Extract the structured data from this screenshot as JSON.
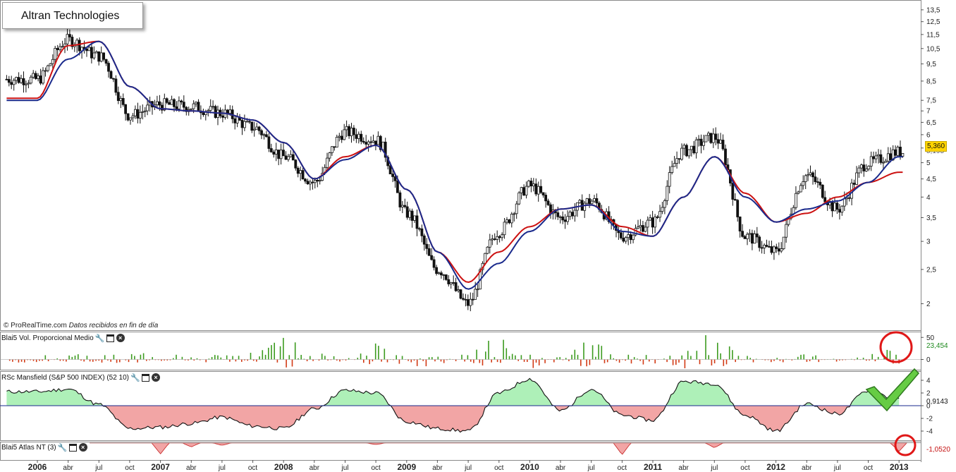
{
  "title": "Altran Technologies",
  "credit_site": "© ProRealTime.com",
  "credit_note": "Datos recibidos en fin de día",
  "colors": {
    "up_bar": "#3c9b1f",
    "down_bar": "#d23a15",
    "ma_fast": "#cc1111",
    "ma_slow": "#1a2a8c",
    "rs_positive_fill": "#aef0b8",
    "rs_negative_fill": "#f2a5a5",
    "price_tag": "#ffd400",
    "annotation_red": "#e01818",
    "check_green": "#66cc44"
  },
  "x_axis": {
    "labels": [
      "2006",
      "abr",
      "jul",
      "oct",
      "2007",
      "abr",
      "jul",
      "oct",
      "2008",
      "abr",
      "jul",
      "oct",
      "2009",
      "abr",
      "jul",
      "oct",
      "2010",
      "abr",
      "jul",
      "oct",
      "2011",
      "abr",
      "jul",
      "oct",
      "2012",
      "abr",
      "jul",
      "oct",
      "2013"
    ],
    "bold": [
      "2006",
      "2007",
      "2008",
      "2009",
      "2010",
      "2011",
      "2012",
      "2013"
    ]
  },
  "price_panel": {
    "icon": "gear-icon",
    "current_price_label": "5,360",
    "secondary_label": "5,195",
    "y_ticks": [
      "13,5",
      "12,5",
      "11,5",
      "10,5",
      "9,5",
      "8,5",
      "7,5",
      "7",
      "6,5",
      "6",
      "5,5",
      "5",
      "4,5",
      "4",
      "3,5",
      "3",
      "2,5",
      "2"
    ]
  },
  "volume_panel": {
    "name": "Blai5 Vol. Proporcional Medio",
    "value_label": "23,454",
    "y_ticks": [
      "50",
      "0"
    ]
  },
  "rs_panel": {
    "name": "RSc Mansfield (S&P 500 INDEX) (52 10)",
    "value_label": "0,9143",
    "y_ticks": [
      "4",
      "2",
      "0",
      "-2",
      "-4"
    ]
  },
  "atlas_panel": {
    "name": "Blai5 Atlas NT (3)",
    "value_label": "-1,0520"
  },
  "chart_data": [
    {
      "type": "candlestick",
      "title": "Altran Technologies",
      "yscale": "log",
      "ylim": [
        1.7,
        14
      ],
      "x": [
        "2006-01",
        "2006-04",
        "2006-07",
        "2006-10",
        "2007-01",
        "2007-04",
        "2007-07",
        "2007-10",
        "2008-01",
        "2008-04",
        "2008-07",
        "2008-10",
        "2009-01",
        "2009-04",
        "2009-07",
        "2009-10",
        "2010-01",
        "2010-04",
        "2010-07",
        "2010-10",
        "2011-01",
        "2011-04",
        "2011-07",
        "2011-10",
        "2012-01",
        "2012-04",
        "2012-07",
        "2012-10",
        "2013-01"
      ],
      "close": [
        8.6,
        11.1,
        10.0,
        6.8,
        7.3,
        7.2,
        6.9,
        6.3,
        5.2,
        4.4,
        6.1,
        5.8,
        3.6,
        2.5,
        2.0,
        3.2,
        4.3,
        3.5,
        3.9,
        3.1,
        3.4,
        5.4,
        5.9,
        3.1,
        2.8,
        4.6,
        3.7,
        5.0,
        5.36
      ],
      "series": [
        {
          "name": "",
          "color": "#cc1111",
          "values": [
            7.6,
            10.7,
            11.0,
            8.2,
            7.1,
            7.0,
            6.9,
            6.6,
            5.7,
            4.5,
            5.2,
            5.6,
            4.2,
            2.8,
            2.3,
            2.8,
            3.3,
            3.7,
            3.8,
            3.3,
            3.1,
            4.0,
            5.2,
            4.1,
            3.4,
            3.6,
            4.0,
            4.4,
            4.7
          ]
        },
        {
          "name": "",
          "color": "#1a2a8c",
          "values": [
            7.5,
            9.8,
            11.0,
            8.2,
            7.1,
            7.0,
            6.9,
            6.6,
            5.7,
            4.5,
            5.1,
            5.6,
            4.2,
            2.8,
            2.2,
            2.6,
            3.2,
            3.7,
            3.8,
            3.2,
            3.1,
            4.0,
            5.2,
            4.0,
            3.4,
            3.7,
            3.9,
            4.4,
            5.2
          ]
        }
      ]
    },
    {
      "type": "bar",
      "title": "Blai5 Vol. Proporcional Medio",
      "ylim": [
        -20,
        60
      ],
      "x": [
        "2006-01",
        "2006-04",
        "2006-07",
        "2006-10",
        "2007-01",
        "2007-04",
        "2007-07",
        "2007-10",
        "2008-01",
        "2008-04",
        "2008-07",
        "2008-10",
        "2009-01",
        "2009-04",
        "2009-07",
        "2009-10",
        "2010-01",
        "2010-04",
        "2010-07",
        "2010-10",
        "2011-01",
        "2011-04",
        "2011-07",
        "2011-10",
        "2012-01",
        "2012-04",
        "2012-07",
        "2012-10",
        "2013-01"
      ],
      "values": [
        -6,
        12,
        18,
        25,
        9,
        -7,
        12,
        15,
        45,
        15,
        -6,
        35,
        -18,
        -14,
        30,
        45,
        -20,
        5,
        50,
        -8,
        -12,
        50,
        45,
        5,
        -6,
        22,
        -6,
        10,
        23.454
      ]
    },
    {
      "type": "area",
      "title": "RSc Mansfield (S&P 500 INDEX) (52 10)",
      "ylim": [
        -5,
        5
      ],
      "x": [
        "2006-01",
        "2006-04",
        "2006-07",
        "2006-10",
        "2007-01",
        "2007-04",
        "2007-07",
        "2007-10",
        "2008-01",
        "2008-04",
        "2008-07",
        "2008-10",
        "2009-01",
        "2009-04",
        "2009-07",
        "2009-10",
        "2010-01",
        "2010-04",
        "2010-07",
        "2010-10",
        "2011-01",
        "2011-04",
        "2011-07",
        "2011-10",
        "2012-01",
        "2012-04",
        "2012-07",
        "2012-10",
        "2013-01"
      ],
      "values": [
        2.2,
        2.6,
        0.2,
        -3.6,
        -3.4,
        -2.8,
        -1.8,
        -3.2,
        -3.6,
        -0.5,
        2.4,
        2.0,
        -2.5,
        -3.6,
        -4.0,
        2.0,
        4.2,
        -0.8,
        2.6,
        -1.5,
        -2.3,
        3.8,
        3.5,
        -1.5,
        -4.0,
        0.3,
        -1.3,
        2.4,
        0.9143
      ]
    },
    {
      "type": "area",
      "title": "Blai5 Atlas NT (3)",
      "ylim": [
        -2,
        0
      ],
      "x": [
        "2006-01",
        "2006-04",
        "2006-07",
        "2006-10",
        "2007-01",
        "2007-04",
        "2007-07",
        "2007-10",
        "2008-01",
        "2008-04",
        "2008-07",
        "2008-10",
        "2009-01",
        "2009-04",
        "2009-07",
        "2009-10",
        "2010-01",
        "2010-04",
        "2010-07",
        "2010-10",
        "2011-01",
        "2011-04",
        "2011-07",
        "2011-10",
        "2012-01",
        "2012-04",
        "2012-07",
        "2012-10",
        "2013-01"
      ],
      "values": [
        0,
        0,
        0,
        0,
        -1.4,
        -0.5,
        -0.3,
        0,
        0,
        0,
        0,
        -0.2,
        0,
        0,
        0,
        0,
        0,
        0,
        0,
        -1.5,
        0,
        0,
        -0.6,
        0,
        0,
        0,
        0,
        0,
        -1.052
      ]
    }
  ]
}
